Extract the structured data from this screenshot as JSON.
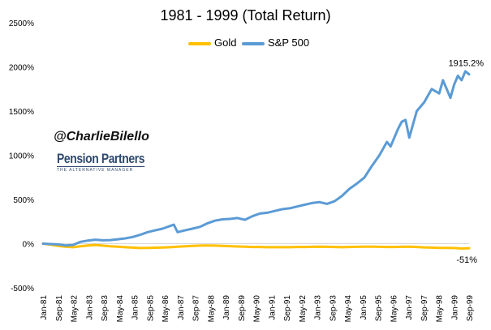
{
  "chart_data": {
    "type": "line",
    "title": "1981 - 1999 (Total Return)",
    "xlabel": "",
    "ylabel": "",
    "ylim": [
      -500,
      2500
    ],
    "y_ticks": [
      -500,
      0,
      500,
      1000,
      1500,
      2000,
      2500
    ],
    "y_tick_labels": [
      "-500%",
      "0%",
      "500%",
      "1000%",
      "1500%",
      "2000%",
      "2500%"
    ],
    "x_tick_labels": [
      "Jan-81",
      "Sep-81",
      "May-82",
      "Jan-83",
      "Sep-83",
      "May-84",
      "Jan-85",
      "Sep-85",
      "May-86",
      "Jan-87",
      "Sep-87",
      "May-88",
      "Jan-89",
      "Sep-89",
      "May-90",
      "Jan-91",
      "Sep-91",
      "May-92",
      "Jan-93",
      "Sep-93",
      "May-94",
      "Jan-95",
      "Sep-95",
      "May-96",
      "Jan-97",
      "Sep-97",
      "May-98",
      "Jan-99",
      "Sep-99"
    ],
    "grid": false,
    "legend_position": "top",
    "series": [
      {
        "name": "Gold",
        "color": "#FFC000",
        "x": [
          0,
          4,
          8,
          12,
          16,
          20,
          24,
          28,
          32,
          36,
          40,
          44,
          48,
          52,
          56,
          60,
          64,
          68,
          72,
          76,
          80,
          84,
          88,
          92,
          96,
          100,
          104,
          108,
          112,
          116,
          120,
          124,
          128,
          132,
          136,
          140,
          144,
          148,
          152,
          156,
          160,
          164,
          168,
          172,
          176,
          180,
          184,
          188,
          192,
          196,
          200,
          204,
          208,
          212,
          216,
          220,
          224,
          228
        ],
        "values": [
          0,
          -12,
          -25,
          -35,
          -40,
          -30,
          -20,
          -15,
          -22,
          -30,
          -35,
          -40,
          -45,
          -50,
          -48,
          -46,
          -44,
          -40,
          -35,
          -30,
          -25,
          -22,
          -20,
          -22,
          -25,
          -28,
          -32,
          -35,
          -38,
          -38,
          -40,
          -40,
          -40,
          -40,
          -38,
          -38,
          -36,
          -34,
          -36,
          -38,
          -40,
          -38,
          -36,
          -35,
          -35,
          -36,
          -38,
          -38,
          -36,
          -35,
          -38,
          -42,
          -45,
          -48,
          -48,
          -50,
          -55,
          -51
        ],
        "end_label": "-51%"
      },
      {
        "name": "S&P 500",
        "color": "#5B9BD5",
        "x": [
          0,
          4,
          8,
          12,
          16,
          20,
          24,
          28,
          32,
          36,
          40,
          44,
          48,
          52,
          56,
          60,
          64,
          68,
          70,
          72,
          76,
          80,
          84,
          88,
          92,
          96,
          100,
          104,
          108,
          112,
          116,
          120,
          124,
          128,
          132,
          136,
          140,
          144,
          148,
          152,
          156,
          160,
          164,
          168,
          172,
          176,
          180,
          184,
          186,
          188,
          190,
          192,
          194,
          196,
          200,
          204,
          208,
          212,
          214,
          216,
          218,
          220,
          222,
          224,
          226,
          228
        ],
        "values": [
          0,
          -5,
          -8,
          -20,
          -15,
          20,
          35,
          45,
          38,
          40,
          50,
          60,
          75,
          100,
          130,
          150,
          170,
          200,
          215,
          130,
          150,
          170,
          190,
          230,
          260,
          275,
          280,
          290,
          270,
          310,
          340,
          350,
          370,
          390,
          400,
          420,
          440,
          460,
          470,
          450,
          480,
          540,
          620,
          680,
          750,
          880,
          1000,
          1150,
          1100,
          1200,
          1300,
          1380,
          1400,
          1200,
          1500,
          1600,
          1750,
          1700,
          1850,
          1750,
          1650,
          1800,
          1900,
          1850,
          1950,
          1915.2
        ],
        "end_label": "1915.2%"
      }
    ],
    "annotations": [
      "@CharlieBilello",
      "Pension Partners",
      "THE ALTERNATIVE MANAGER"
    ]
  }
}
